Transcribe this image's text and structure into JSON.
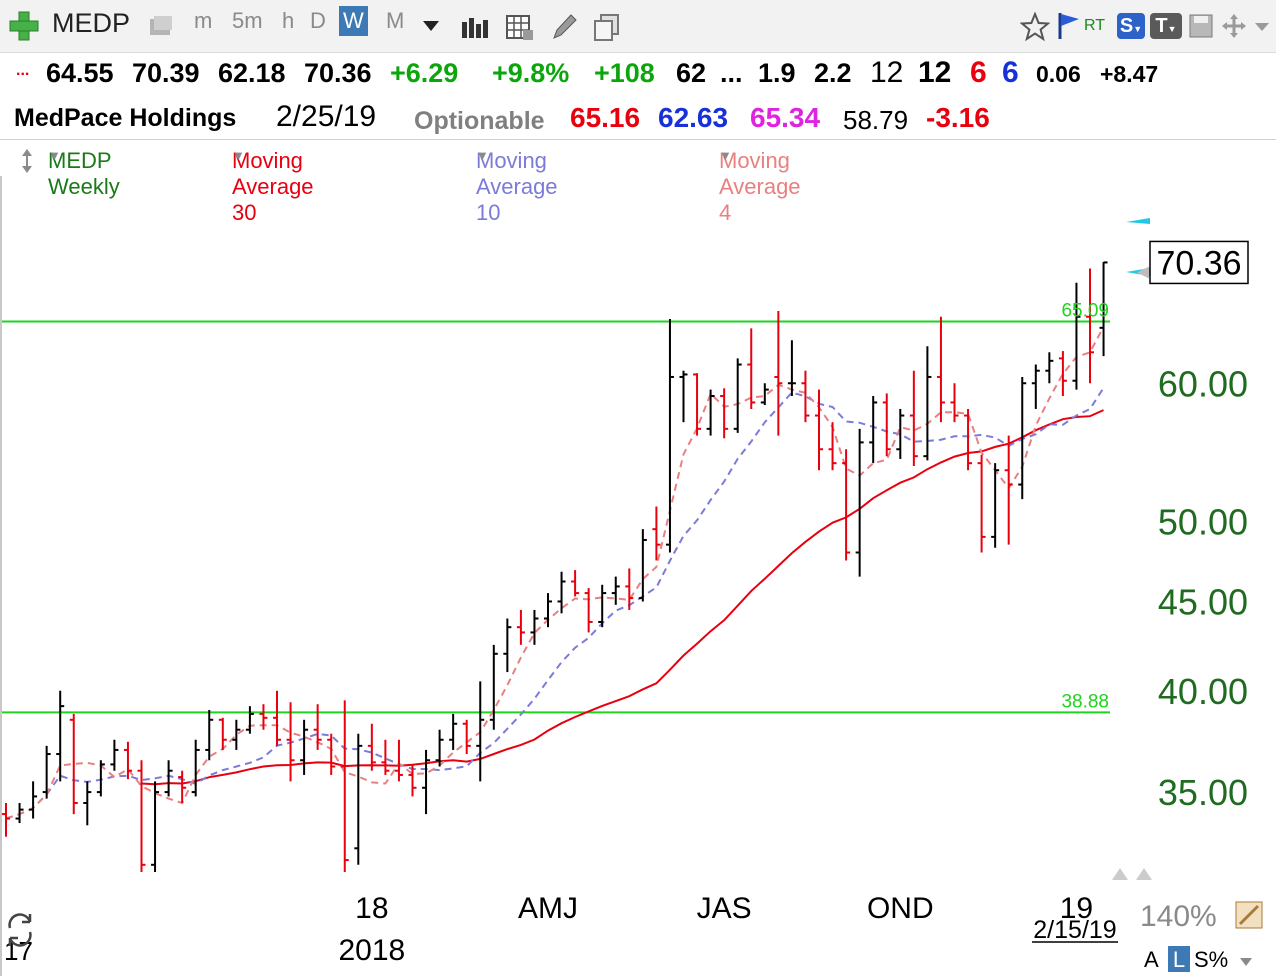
{
  "toolbar": {
    "symbol": "MEDP",
    "timeframes": [
      "m",
      "5m",
      "h",
      "D",
      "W",
      "M"
    ],
    "active_timeframe": "W",
    "rt": "RT",
    "s_badge": "S",
    "t_badge": "T"
  },
  "quote": {
    "dots": "...",
    "open": "64.55",
    "high": "70.39",
    "low": "62.18",
    "close": "70.36",
    "change": "+6.29",
    "change_pct": "+9.8%",
    "vol_change": "+108",
    "v62": "62",
    "ellipsis": "...",
    "v1_9": "1.9",
    "v2_2": "2.2",
    "v12a": "12",
    "v12b": "12",
    "v6a": "6",
    "v6b": "6",
    "v006": "0.06",
    "v847": "+8.47"
  },
  "info": {
    "name": "MedPace Holdings",
    "date": "2/25/19",
    "optionable": "Optionable",
    "ma30": "65.16",
    "ma10": "62.63",
    "ma4": "65.34",
    "v5879": "58.79",
    "neg": "-3.16"
  },
  "legend": {
    "series": "MEDP Weekly",
    "ma30": "Moving Average 30",
    "ma10": "Moving Average 10",
    "ma4": "Moving Average 4"
  },
  "colors": {
    "up_bar": "#000000",
    "down_bar": "#e8000f",
    "ma30": "#e8000f",
    "ma10": "#7b7bd9",
    "ma4": "#e88080",
    "hline": "#1ed51e",
    "axis_label": "#1f6b1f"
  },
  "chart_data": {
    "type": "bar",
    "series_name": "MEDP Weekly",
    "y_scale": "log",
    "ylim": [
      31.5,
      75
    ],
    "ytick_labels": [
      "35.00",
      "40.00",
      "45.00",
      "50.00",
      "60.00"
    ],
    "yticks": [
      35,
      40,
      45,
      50,
      60
    ],
    "xtick_labels": [
      "18",
      "AMJ",
      "JAS",
      "OND",
      "19"
    ],
    "xtick_weeks": [
      27,
      40,
      53,
      66,
      79
    ],
    "year_label": "2018",
    "left_year_label": "17",
    "last_price_label": "70.36",
    "last_price": 70.36,
    "horizontal_lines": [
      {
        "value": 65.09,
        "label": "65.09"
      },
      {
        "value": 38.88,
        "label": "38.88"
      }
    ],
    "date_label": "2/15/19",
    "zoom_label": "140%",
    "bottom_labels": {
      "a": "A",
      "l": "L",
      "spct": "S%"
    },
    "weeks": [
      {
        "o": 34,
        "h": 34.5,
        "l": 33,
        "c": 33.8
      },
      {
        "o": 33.8,
        "h": 34.5,
        "l": 33.6,
        "c": 34.2
      },
      {
        "o": 34.2,
        "h": 35.5,
        "l": 33.8,
        "c": 34.8
      },
      {
        "o": 35,
        "h": 37.2,
        "l": 34.7,
        "c": 36.8
      },
      {
        "o": 36.8,
        "h": 40,
        "l": 35.5,
        "c": 39.2
      },
      {
        "o": 38.5,
        "h": 38.8,
        "l": 34,
        "c": 34.5
      },
      {
        "o": 34.5,
        "h": 35.5,
        "l": 33.5,
        "c": 35
      },
      {
        "o": 35,
        "h": 36.5,
        "l": 34.8,
        "c": 36.3
      },
      {
        "o": 36.3,
        "h": 37.5,
        "l": 36,
        "c": 37
      },
      {
        "o": 37,
        "h": 37.4,
        "l": 35.6,
        "c": 36
      },
      {
        "o": 36,
        "h": 36.5,
        "l": 31.5,
        "c": 31.8
      },
      {
        "o": 31.8,
        "h": 35.5,
        "l": 31.5,
        "c": 35
      },
      {
        "o": 35,
        "h": 36.5,
        "l": 34.8,
        "c": 36
      },
      {
        "o": 35.7,
        "h": 36,
        "l": 34.5,
        "c": 35.2
      },
      {
        "o": 35,
        "h": 37.5,
        "l": 34.8,
        "c": 37
      },
      {
        "o": 37,
        "h": 39,
        "l": 36.5,
        "c": 38.5
      },
      {
        "o": 38.5,
        "h": 38.6,
        "l": 37,
        "c": 37.5
      },
      {
        "o": 37.5,
        "h": 38.5,
        "l": 37,
        "c": 38
      },
      {
        "o": 38,
        "h": 39.2,
        "l": 37.8,
        "c": 38.8
      },
      {
        "o": 38.8,
        "h": 39.3,
        "l": 38,
        "c": 38.6
      },
      {
        "o": 38.6,
        "h": 40,
        "l": 37.2,
        "c": 37.5
      },
      {
        "o": 37.5,
        "h": 39.4,
        "l": 35.5,
        "c": 36.5
      },
      {
        "o": 36.5,
        "h": 38.5,
        "l": 35.8,
        "c": 38
      },
      {
        "o": 38,
        "h": 39.3,
        "l": 37,
        "c": 37.5
      },
      {
        "o": 37.5,
        "h": 37.8,
        "l": 35.8,
        "c": 36.2
      },
      {
        "o": 36.2,
        "h": 39.5,
        "l": 31.5,
        "c": 32
      },
      {
        "o": 32.5,
        "h": 37.8,
        "l": 31.8,
        "c": 37.2
      },
      {
        "o": 37.2,
        "h": 38.3,
        "l": 36,
        "c": 36.4
      },
      {
        "o": 36.4,
        "h": 37.5,
        "l": 35.8,
        "c": 36
      },
      {
        "o": 36,
        "h": 37.5,
        "l": 35.5,
        "c": 35.8
      },
      {
        "o": 35.8,
        "h": 36.3,
        "l": 34.8,
        "c": 35.2
      },
      {
        "o": 35.2,
        "h": 37,
        "l": 34,
        "c": 36.5
      },
      {
        "o": 36.5,
        "h": 38,
        "l": 36.2,
        "c": 37.5
      },
      {
        "o": 37.5,
        "h": 38.8,
        "l": 37,
        "c": 38.3
      },
      {
        "o": 38.3,
        "h": 38.5,
        "l": 36.8,
        "c": 37.2
      },
      {
        "o": 37.2,
        "h": 40.5,
        "l": 35.5,
        "c": 38.5
      },
      {
        "o": 38.5,
        "h": 42.5,
        "l": 38,
        "c": 42
      },
      {
        "o": 42,
        "h": 44,
        "l": 41,
        "c": 43.5
      },
      {
        "o": 43.5,
        "h": 44.5,
        "l": 42.5,
        "c": 43.2
      },
      {
        "o": 43.2,
        "h": 44.5,
        "l": 42.5,
        "c": 44
      },
      {
        "o": 44,
        "h": 45.5,
        "l": 43.5,
        "c": 45
      },
      {
        "o": 45,
        "h": 46.8,
        "l": 44.3,
        "c": 46.2
      },
      {
        "o": 46.2,
        "h": 46.9,
        "l": 45.3,
        "c": 45.5
      },
      {
        "o": 45.5,
        "h": 45.8,
        "l": 43.2,
        "c": 43.8
      },
      {
        "o": 43.8,
        "h": 46,
        "l": 43.5,
        "c": 45.5
      },
      {
        "o": 45.5,
        "h": 46.5,
        "l": 44.8,
        "c": 45.9
      },
      {
        "o": 45.9,
        "h": 47,
        "l": 44.5,
        "c": 45.2
      },
      {
        "o": 45.2,
        "h": 49.5,
        "l": 45,
        "c": 48.8
      },
      {
        "o": 49.5,
        "h": 51,
        "l": 47.5,
        "c": 48.5
      },
      {
        "o": 48.5,
        "h": 65.3,
        "l": 48,
        "c": 60.5
      },
      {
        "o": 60.5,
        "h": 61,
        "l": 57,
        "c": 60.7
      },
      {
        "o": 60.7,
        "h": 60.8,
        "l": 56,
        "c": 56.5
      },
      {
        "o": 56.5,
        "h": 59.5,
        "l": 56,
        "c": 59
      },
      {
        "o": 59,
        "h": 59.6,
        "l": 55.8,
        "c": 56.5
      },
      {
        "o": 56.5,
        "h": 62,
        "l": 56.2,
        "c": 61.5
      },
      {
        "o": 61.5,
        "h": 64.5,
        "l": 58,
        "c": 58.5
      },
      {
        "o": 58.5,
        "h": 60,
        "l": 58.3,
        "c": 59.5
      },
      {
        "o": 60.5,
        "h": 66,
        "l": 56,
        "c": 60
      },
      {
        "o": 60,
        "h": 63.5,
        "l": 59,
        "c": 60
      },
      {
        "o": 60,
        "h": 61,
        "l": 57,
        "c": 57.5
      },
      {
        "o": 57.5,
        "h": 59.5,
        "l": 53.5,
        "c": 55
      },
      {
        "o": 55,
        "h": 57,
        "l": 53.5,
        "c": 54
      },
      {
        "o": 54,
        "h": 55,
        "l": 47.5,
        "c": 48
      },
      {
        "o": 48,
        "h": 56.5,
        "l": 46.5,
        "c": 55.5
      },
      {
        "o": 55.5,
        "h": 59,
        "l": 54,
        "c": 58.5
      },
      {
        "o": 58.5,
        "h": 59.2,
        "l": 54.5,
        "c": 55
      },
      {
        "o": 55,
        "h": 58,
        "l": 54.3,
        "c": 57.5
      },
      {
        "o": 57.5,
        "h": 61,
        "l": 53.8,
        "c": 54.5
      },
      {
        "o": 54.5,
        "h": 63,
        "l": 54.2,
        "c": 60.5
      },
      {
        "o": 60.5,
        "h": 65.5,
        "l": 57,
        "c": 58.5
      },
      {
        "o": 58.5,
        "h": 60,
        "l": 57,
        "c": 57.5
      },
      {
        "o": 57.5,
        "h": 58,
        "l": 53.5,
        "c": 54
      },
      {
        "o": 54,
        "h": 54.6,
        "l": 48,
        "c": 49
      },
      {
        "o": 49,
        "h": 54,
        "l": 48.3,
        "c": 53.5
      },
      {
        "o": 53.5,
        "h": 56,
        "l": 48.5,
        "c": 52.5
      },
      {
        "o": 52.5,
        "h": 60.5,
        "l": 51.5,
        "c": 60
      },
      {
        "o": 60,
        "h": 61.5,
        "l": 58,
        "c": 61
      },
      {
        "o": 61,
        "h": 62.5,
        "l": 60,
        "c": 61.8
      },
      {
        "o": 62,
        "h": 62.6,
        "l": 59,
        "c": 60.2
      },
      {
        "o": 60.2,
        "h": 68.5,
        "l": 59.5,
        "c": 65.5
      },
      {
        "o": 65.5,
        "h": 69.8,
        "l": 60,
        "c": 62.5
      },
      {
        "o": 64.55,
        "h": 70.39,
        "l": 62.18,
        "c": 70.36
      }
    ]
  }
}
